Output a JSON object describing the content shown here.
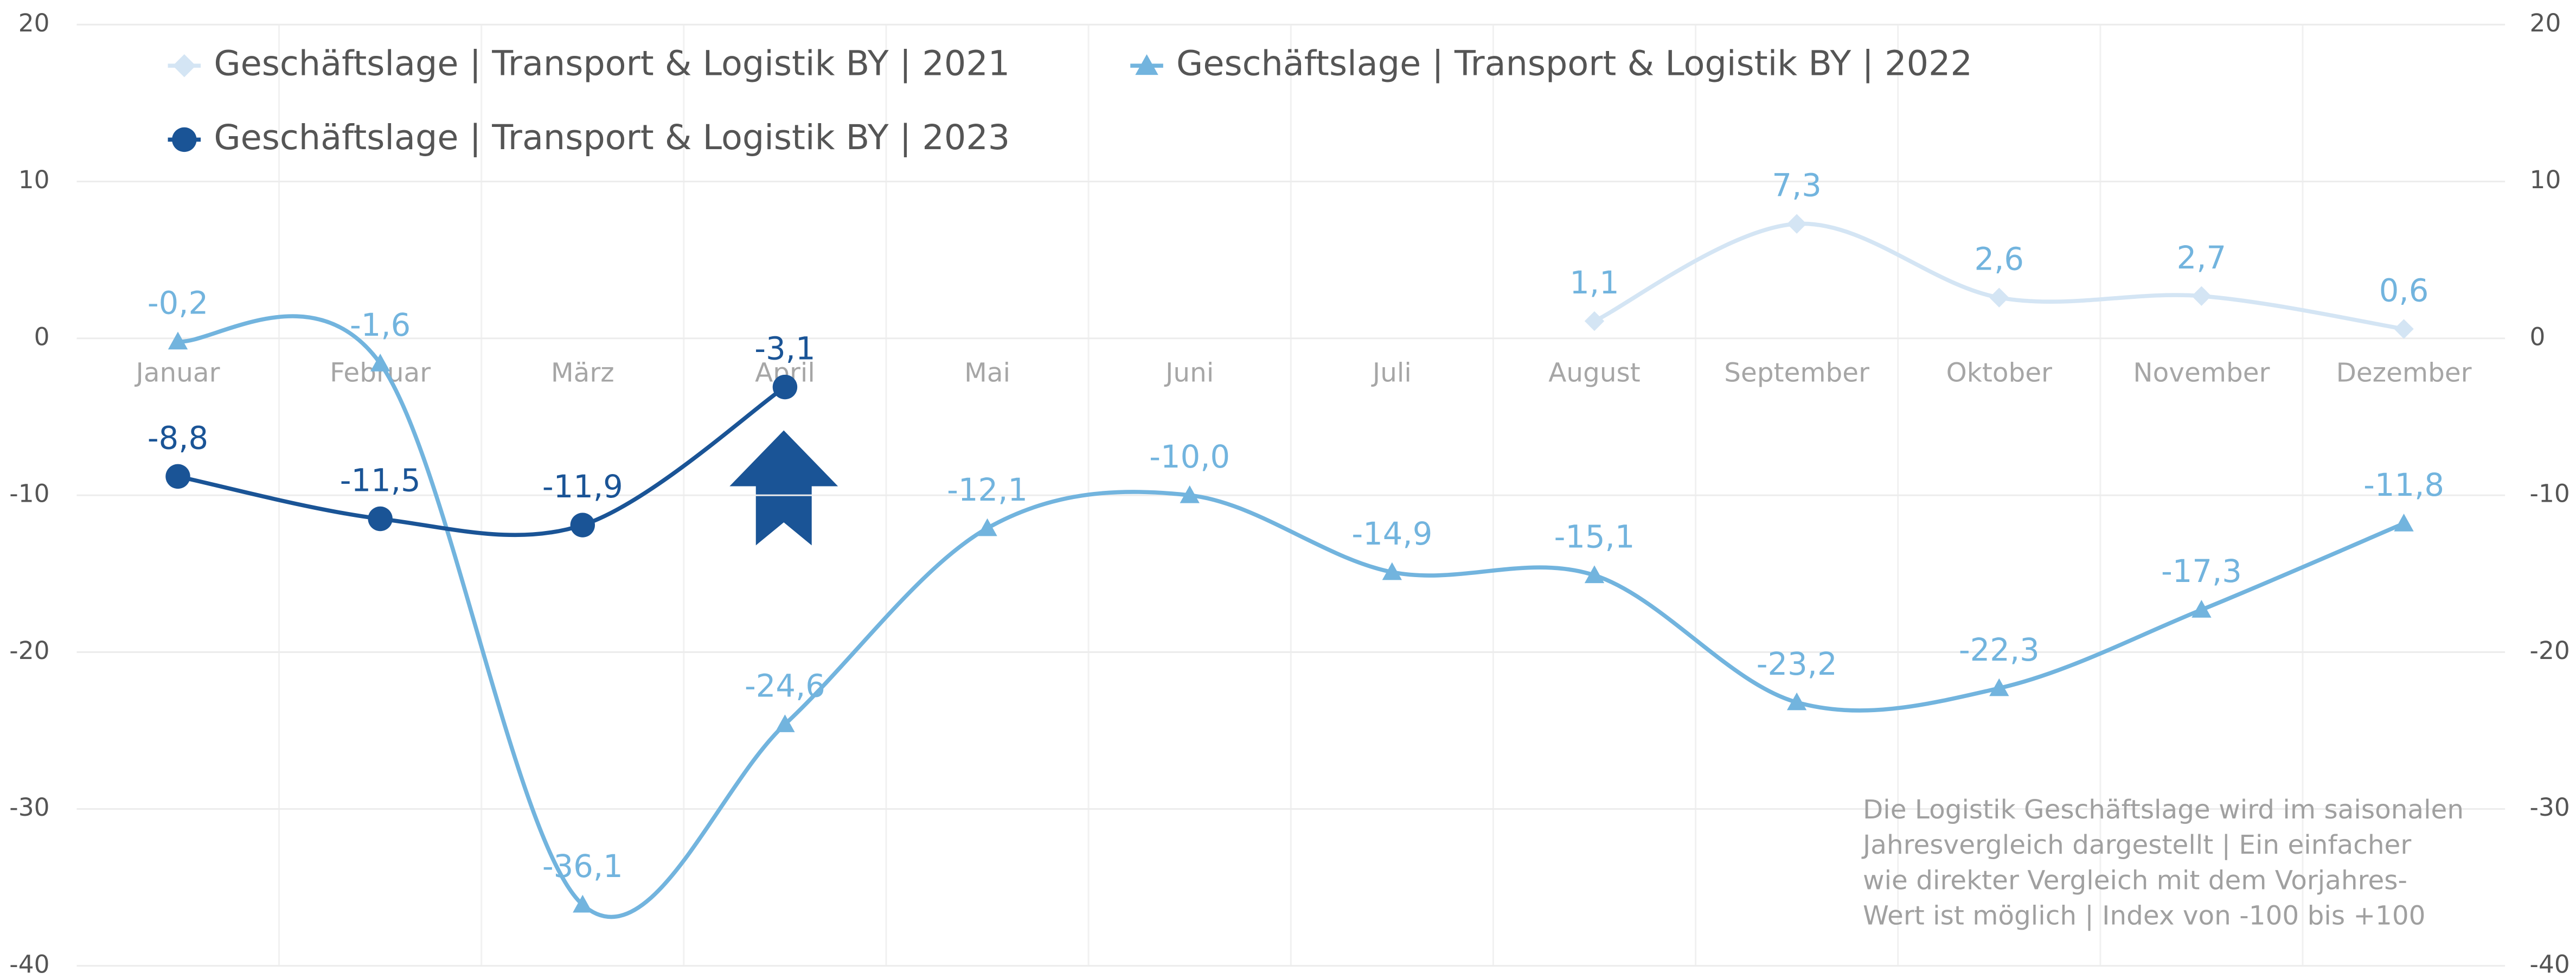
{
  "chart_data": {
    "type": "line",
    "categories": [
      "Januar",
      "Februar",
      "März",
      "April",
      "Mai",
      "Juni",
      "Juli",
      "August",
      "September",
      "Oktober",
      "November",
      "Dezember"
    ],
    "series": [
      {
        "name": "Geschäftslage | Transport & Logistik BY | 2021",
        "color": "#d4e5f4",
        "label_color": "#72b4de",
        "marker": "diamond",
        "values": [
          null,
          null,
          null,
          null,
          null,
          null,
          null,
          1.1,
          7.3,
          2.6,
          2.7,
          0.6
        ],
        "value_labels": [
          null,
          null,
          null,
          null,
          null,
          null,
          null,
          "1,1",
          "7,3",
          "2,6",
          "2,7",
          "0,6"
        ]
      },
      {
        "name": "Geschäftslage | Transport & Logistik BY | 2022",
        "color": "#72b4de",
        "label_color": "#72b4de",
        "marker": "triangle",
        "values": [
          -0.2,
          -1.6,
          -36.1,
          -24.6,
          -12.1,
          -10.0,
          -14.9,
          -15.1,
          -23.2,
          -22.3,
          -17.3,
          -11.8
        ],
        "value_labels": [
          "-0,2",
          "-1,6",
          "-36,1",
          "-24,6",
          "-12,1",
          "-10,0",
          "-14,9",
          "-15,1",
          "-23,2",
          "-22,3",
          "-17,3",
          "-11,8"
        ]
      },
      {
        "name": "Geschäftslage | Transport & Logistik BY | 2023",
        "color": "#1a5496",
        "label_color": "#1a5496",
        "marker": "circle",
        "values": [
          -8.8,
          -11.5,
          -11.9,
          -3.1,
          null,
          null,
          null,
          null,
          null,
          null,
          null,
          null
        ],
        "value_labels": [
          "-8,8",
          "-11,5",
          "-11,9",
          "-3,1",
          null,
          null,
          null,
          null,
          null,
          null,
          null,
          null
        ]
      }
    ],
    "ylim": [
      -40,
      20
    ],
    "yticks": [
      -40,
      -30,
      -20,
      -10,
      0,
      10,
      20
    ],
    "y2lim": [
      -40,
      20
    ],
    "y2ticks": [
      -40,
      -30,
      -20,
      -10,
      0,
      10,
      20
    ],
    "grid": true,
    "legend": "top-left",
    "annotation": [
      "Die Logistik Geschäftslage wird im saisonalen",
      "Jahresvergleich dargestellt | Ein einfacher",
      "wie direkter Vergleich mit dem Vorjahres-",
      "Wert ist möglich | Index von -100 bis +100"
    ]
  }
}
